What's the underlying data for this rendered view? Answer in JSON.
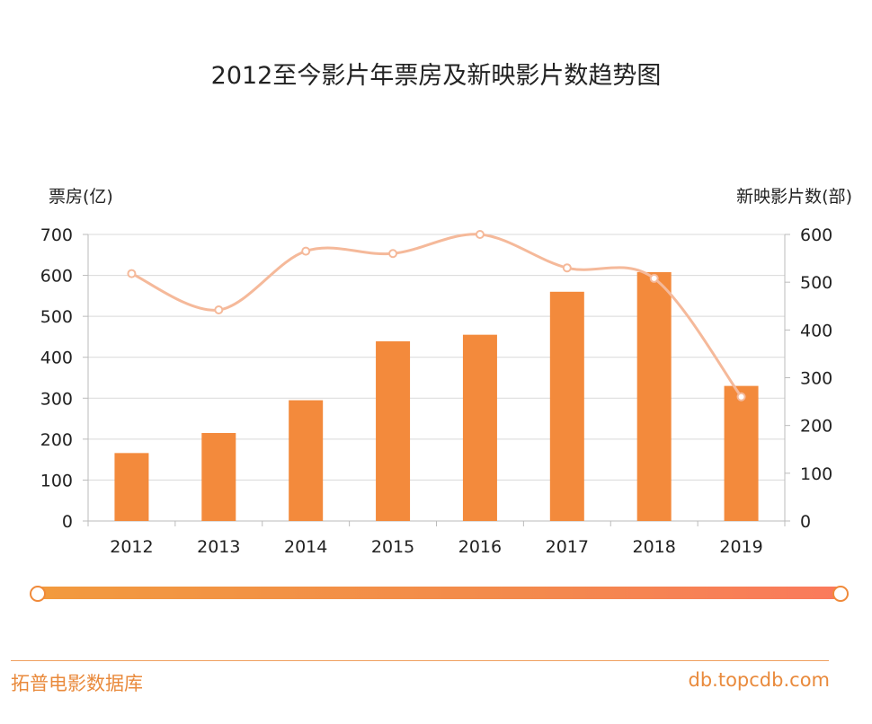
{
  "chart_data": {
    "type": "bar+line",
    "title": "2012至今影片年票房及新映影片数趋势图",
    "categories": [
      "2012",
      "2013",
      "2014",
      "2015",
      "2016",
      "2017",
      "2018",
      "2019"
    ],
    "series": [
      {
        "name": "票房",
        "type": "bar",
        "axis": "left",
        "values": [
          166,
          215,
          295,
          439,
          455,
          560,
          608,
          330
        ]
      },
      {
        "name": "新映影片数",
        "type": "line",
        "axis": "right",
        "values": [
          518,
          442,
          565,
          560,
          600,
          530,
          508,
          260
        ]
      }
    ],
    "left_axis": {
      "label": "票房(亿)",
      "min": 0,
      "max": 700,
      "ticks": [
        0,
        100,
        200,
        300,
        400,
        500,
        600,
        700
      ]
    },
    "right_axis": {
      "label": "新映影片数(部)",
      "min": 0,
      "max": 600,
      "ticks": [
        0,
        100,
        200,
        300,
        400,
        500,
        600
      ]
    },
    "colors": {
      "bar": "#f38a3c",
      "line": "#f5b99a",
      "grid": "#d9d9d9",
      "accent": "#e98a3c"
    }
  },
  "slider": {
    "start": 0,
    "end": 1
  },
  "footer": {
    "brand": "拓普电影数据库",
    "url": "db.topcdb.com"
  }
}
